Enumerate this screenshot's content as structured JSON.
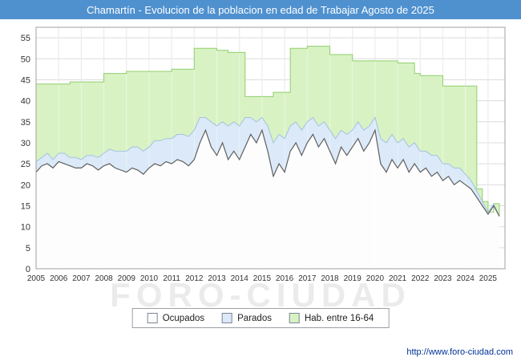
{
  "title": "Chamartín - Evolucion de la poblacion en edad de Trabajar Agosto de 2025",
  "watermark": "FORO-CIUDAD",
  "footer_url": "http://www.foro-ciudad.com",
  "legend": [
    {
      "label": "Ocupados",
      "fill": "#fdfdfd",
      "border": "#7a8694"
    },
    {
      "label": "Parados",
      "fill": "#dbe9f8",
      "border": "#7a8694"
    },
    {
      "label": "Hab. entre 16-64",
      "fill": "#d9f2c4",
      "border": "#7a8694"
    }
  ],
  "axes": {
    "y_ticks": [
      0,
      5,
      10,
      15,
      20,
      25,
      30,
      35,
      40,
      45,
      50,
      55
    ],
    "x_ticks": [
      2005,
      2006,
      2007,
      2008,
      2009,
      2010,
      2011,
      2012,
      2013,
      2014,
      2015,
      2016,
      2017,
      2018,
      2019,
      2020,
      2021,
      2022,
      2023,
      2024,
      2025
    ],
    "y_max": 57.5,
    "x_min": 2005,
    "x_max": 2025.75,
    "grid": true
  },
  "chart_data": {
    "type": "area",
    "x_start": 2005,
    "x_step": 0.25,
    "stacking": "Parados is stacked on top of Ocupados; Hab. entre 16-64 is the total working-age population drawn behind",
    "series": [
      {
        "name": "Ocupados",
        "values": [
          23,
          24.5,
          25,
          24,
          25.5,
          25,
          24.5,
          24,
          24,
          25,
          24.5,
          23.5,
          24.5,
          25,
          24,
          23.5,
          23,
          24,
          23.5,
          22.5,
          24,
          25,
          24.5,
          25.5,
          25,
          26,
          25.5,
          24.5,
          26,
          30,
          33,
          29,
          27,
          30,
          26,
          28,
          26,
          29,
          32,
          30,
          33,
          28,
          22,
          25,
          23,
          28,
          30,
          27,
          30,
          32,
          29,
          31,
          28,
          25,
          29,
          27,
          29,
          31,
          28,
          30,
          33,
          25,
          23,
          26,
          24,
          26,
          23,
          25,
          23,
          24,
          22,
          23,
          21,
          22,
          20,
          21,
          20,
          19,
          17,
          15,
          13,
          15,
          12.5
        ]
      },
      {
        "name": "Parados",
        "values": [
          2.5,
          2,
          2.5,
          2,
          2,
          2.5,
          2,
          2.5,
          2,
          2,
          2.5,
          3,
          3,
          3.5,
          4,
          4.5,
          5,
          5,
          5.5,
          5.5,
          5,
          5.5,
          6,
          5.5,
          6,
          6,
          6.5,
          7,
          7,
          6,
          3,
          6,
          7,
          5,
          8,
          7,
          8,
          7,
          4,
          5,
          3,
          6,
          8,
          7,
          8,
          6,
          5,
          6,
          5,
          4,
          5,
          4,
          5,
          6,
          4,
          5,
          4,
          4,
          5,
          4,
          3,
          6,
          7,
          6,
          6,
          5,
          6,
          5,
          5,
          4,
          5,
          4,
          4,
          3,
          4,
          3,
          2.5,
          2,
          1.5,
          1,
          0.5,
          0.5,
          0
        ]
      },
      {
        "name": "Hab. entre 16-64",
        "values": [
          44,
          44,
          44,
          44,
          44,
          44,
          44.5,
          44.5,
          44.5,
          44.5,
          44.5,
          44.5,
          46.5,
          46.5,
          46.5,
          46.5,
          47,
          47,
          47,
          47,
          47,
          47,
          47,
          47,
          47.5,
          47.5,
          47.5,
          47.5,
          52.5,
          52.5,
          52.5,
          52.5,
          52,
          52,
          51.5,
          51.5,
          51.5,
          41,
          41,
          41,
          41,
          41,
          42,
          42,
          42,
          52.5,
          52.5,
          52.5,
          53,
          53,
          53,
          53,
          51,
          51,
          51,
          51,
          49.5,
          49.5,
          49.5,
          49.5,
          49.5,
          49.5,
          49.5,
          49.5,
          49,
          49,
          49,
          46.5,
          46,
          46,
          46,
          46,
          43.5,
          43.5,
          43.5,
          43.5,
          43.5,
          43.5,
          19,
          16,
          13.5,
          15.5,
          12.5
        ]
      }
    ]
  },
  "colors": {
    "title_bar": "#4f91cf",
    "title_text": "#ffffff",
    "hab_fill": "#d9f2c4",
    "hab_stroke": "#8fcf6b",
    "parados_fill": "#dbe9f8",
    "parados_stroke": "#a3c3de",
    "ocupados_fill": "#fdfdfd",
    "ocupados_stroke": "#5f5f5f",
    "grid": "#dcdcdc",
    "plot_border": "#a0a0a0",
    "axis_text": "#333333",
    "link": "#003399",
    "watermark": "#ebebeb"
  }
}
